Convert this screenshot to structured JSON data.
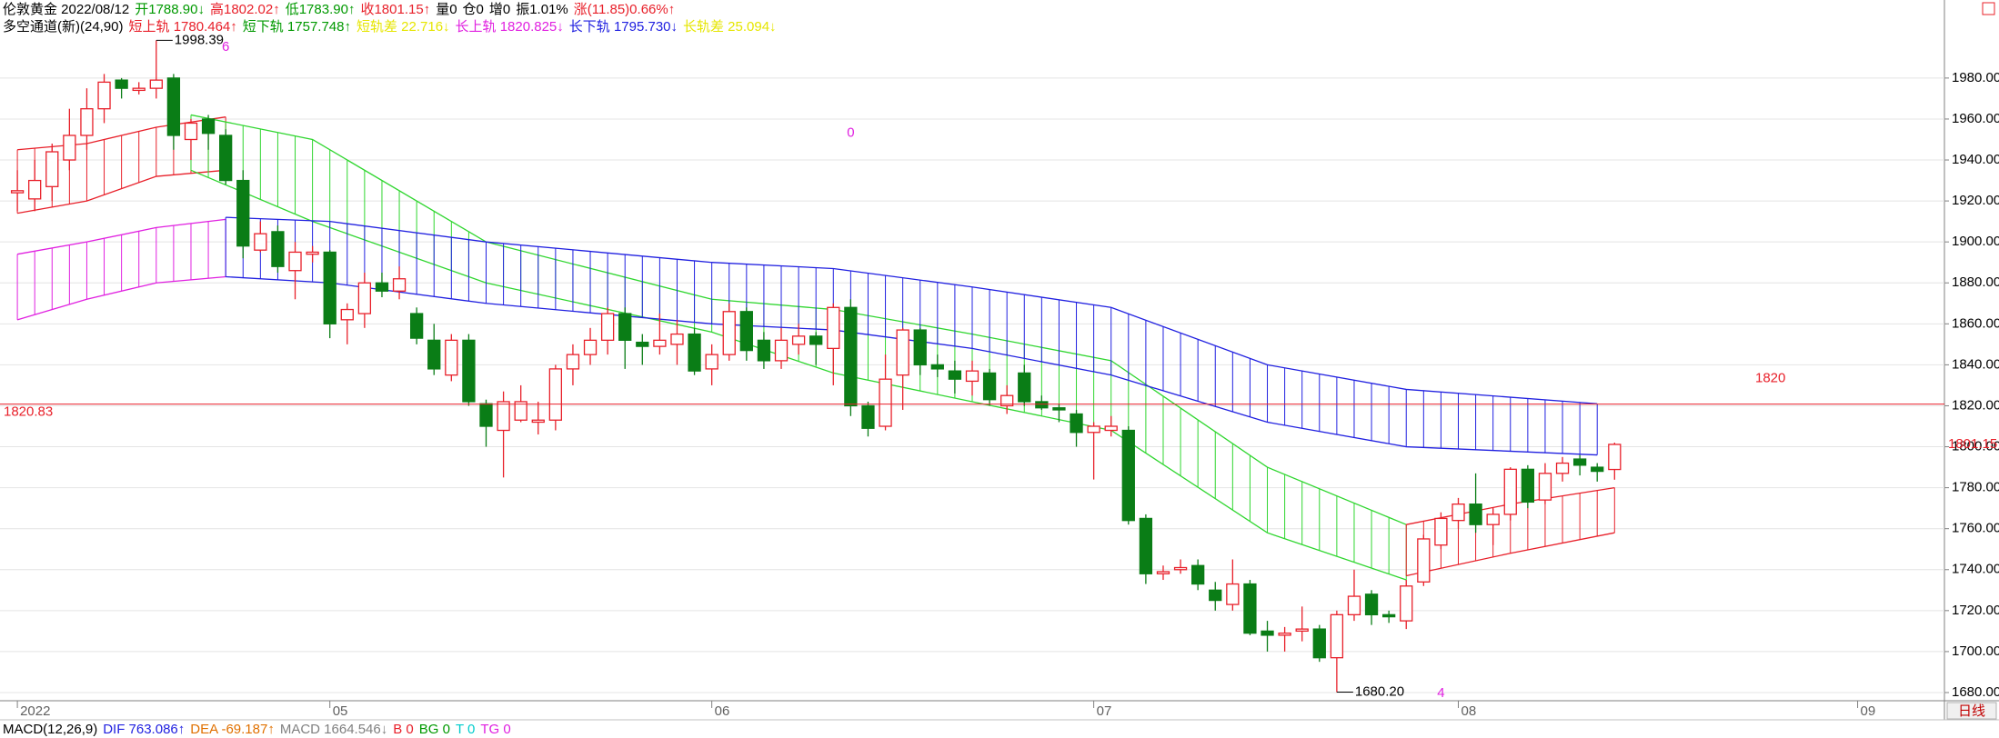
{
  "header_lines": [
    [
      {
        "text": "伦敦黄金 2022/08/12",
        "color": "#000000"
      },
      {
        "text": "开1788.90↓",
        "color": "#009900"
      },
      {
        "text": "高1802.02↑",
        "color": "#e8202a"
      },
      {
        "text": "低1783.90↑",
        "color": "#009900"
      },
      {
        "text": "收1801.15↑",
        "color": "#e8202a"
      },
      {
        "text": "量0",
        "color": "#000000"
      },
      {
        "text": "仓0",
        "color": "#000000"
      },
      {
        "text": "增0",
        "color": "#000000"
      },
      {
        "text": "振1.01%",
        "color": "#000000"
      },
      {
        "text": "涨(11.85)0.66%↑",
        "color": "#e8202a"
      }
    ],
    [
      {
        "text": "多空通道(新)(24,90)",
        "color": "#000000"
      },
      {
        "text": "短上轨 1780.464↑",
        "color": "#e8202a"
      },
      {
        "text": "短下轨 1757.748↑",
        "color": "#009900"
      },
      {
        "text": "短轨差 22.716↓",
        "color": "#e6e600"
      },
      {
        "text": "长上轨 1820.825↓",
        "color": "#e020e0"
      },
      {
        "text": "长下轨 1795.730↓",
        "color": "#2020e0"
      },
      {
        "text": "长轨差 25.094↓",
        "color": "#e6e600"
      }
    ]
  ],
  "footer_line": [
    {
      "text": "MACD(12,26,9)",
      "color": "#000000"
    },
    {
      "text": "DIF 763.086↑",
      "color": "#2020e0"
    },
    {
      "text": "DEA -69.187↑",
      "color": "#e07000"
    },
    {
      "text": "MACD 1664.546↓",
      "color": "#808080"
    },
    {
      "text": "B 0",
      "color": "#e8202a"
    },
    {
      "text": "BG 0",
      "color": "#009900"
    },
    {
      "text": "T 0",
      "color": "#00cccc"
    },
    {
      "text": "TG 0",
      "color": "#e020e0"
    }
  ],
  "period_button": "日线",
  "chart_data": {
    "type": "candlestick",
    "up_color": "#e8202a",
    "down_color": "#0a7d16",
    "open": [
      1924,
      1921,
      1927,
      1940,
      1952,
      1965,
      1979,
      1974,
      1975,
      1980,
      1950,
      1960,
      1952,
      1930,
      1896,
      1905,
      1886,
      1894,
      1895,
      1862,
      1865,
      1880,
      1876,
      1865,
      1852,
      1835,
      1852,
      1821,
      1808,
      1813,
      1812,
      1813,
      1838,
      1845,
      1852,
      1865,
      1851,
      1849,
      1850,
      1855,
      1838,
      1845,
      1866,
      1852,
      1842,
      1850,
      1854,
      1848,
      1868,
      1820,
      1810,
      1835,
      1857,
      1840,
      1837,
      1832,
      1836,
      1820,
      1836,
      1822,
      1819,
      1816,
      1807,
      1808,
      1808,
      1765,
      1738,
      1740,
      1742,
      1730,
      1723,
      1733,
      1710,
      1708,
      1710,
      1711,
      1697,
      1718,
      1728,
      1718,
      1715,
      1734,
      1752,
      1764,
      1772,
      1762,
      1767,
      1789,
      1774,
      1787,
      1794,
      1790,
      1788.9
    ],
    "high": [
      1935,
      1940,
      1948,
      1965,
      1975,
      1982,
      1980,
      1978,
      1998.39,
      1982,
      1960,
      1962,
      1955,
      1935,
      1910,
      1908,
      1900,
      1898,
      1896,
      1870,
      1885,
      1885,
      1888,
      1868,
      1860,
      1855,
      1855,
      1823,
      1827,
      1830,
      1822,
      1840,
      1850,
      1858,
      1868,
      1868,
      1855,
      1865,
      1862,
      1858,
      1850,
      1870,
      1868,
      1856,
      1858,
      1860,
      1856,
      1870,
      1872,
      1822,
      1845,
      1858,
      1858,
      1845,
      1842,
      1842,
      1838,
      1830,
      1840,
      1825,
      1821,
      1818,
      1812,
      1815,
      1810,
      1767,
      1742,
      1745,
      1745,
      1734,
      1745,
      1735,
      1715,
      1712,
      1722,
      1713,
      1720,
      1740,
      1730,
      1720,
      1735,
      1757,
      1768,
      1775,
      1787,
      1770,
      1790,
      1791,
      1792,
      1795,
      1796,
      1792,
      1802.02
    ],
    "low": [
      1915,
      1915,
      1920,
      1935,
      1945,
      1958,
      1970,
      1972,
      1970,
      1945,
      1940,
      1945,
      1928,
      1892,
      1895,
      1885,
      1872,
      1890,
      1853,
      1850,
      1858,
      1873,
      1872,
      1850,
      1835,
      1832,
      1820,
      1800,
      1785,
      1812,
      1806,
      1808,
      1830,
      1840,
      1845,
      1838,
      1840,
      1845,
      1840,
      1835,
      1830,
      1842,
      1842,
      1838,
      1838,
      1845,
      1840,
      1830,
      1815,
      1805,
      1808,
      1818,
      1835,
      1834,
      1826,
      1825,
      1820,
      1816,
      1820,
      1818,
      1812,
      1800,
      1784,
      1805,
      1762,
      1733,
      1735,
      1738,
      1730,
      1720,
      1720,
      1708,
      1700,
      1700,
      1705,
      1695,
      1680.2,
      1715,
      1713,
      1714,
      1711,
      1732,
      1750,
      1760,
      1758,
      1752,
      1764,
      1770,
      1772,
      1783,
      1786,
      1783,
      1783.9
    ],
    "close": [
      1925,
      1930,
      1944,
      1952,
      1965,
      1978,
      1975,
      1975,
      1979,
      1952,
      1958,
      1953,
      1930,
      1898,
      1904,
      1888,
      1895,
      1895,
      1860,
      1867,
      1880,
      1876,
      1882,
      1853,
      1838,
      1852,
      1822,
      1810,
      1822,
      1822,
      1813,
      1838,
      1845,
      1852,
      1865,
      1852,
      1849,
      1852,
      1855,
      1837,
      1845,
      1866,
      1847,
      1842,
      1852,
      1854,
      1850,
      1868,
      1820,
      1809,
      1833,
      1857,
      1840,
      1838,
      1833,
      1837,
      1823,
      1825,
      1822,
      1819,
      1818,
      1807,
      1810,
      1810,
      1764,
      1738,
      1739,
      1741,
      1733,
      1725,
      1733,
      1709,
      1708,
      1709,
      1711,
      1697,
      1718,
      1727,
      1718,
      1717,
      1732,
      1755,
      1765,
      1772,
      1762,
      1767,
      1789,
      1773,
      1787,
      1792,
      1791,
      1788,
      1801.15
    ],
    "bands": [
      {
        "color": "#e020e0",
        "x": [
          0,
          4,
          8,
          12
        ],
        "upper": [
          1894,
          1900,
          1907,
          1911
        ],
        "lower": [
          1862,
          1872,
          1880,
          1883
        ]
      },
      {
        "color": "#e8202a",
        "x": [
          0,
          4,
          8,
          12
        ],
        "upper": [
          1945,
          1948,
          1956,
          1961
        ],
        "lower": [
          1914,
          1920,
          1932,
          1935
        ]
      },
      {
        "color": "#2fd62f",
        "x": [
          10,
          17,
          27,
          40,
          47,
          55,
          63,
          72,
          80
        ],
        "upper": [
          1962,
          1950,
          1900,
          1872,
          1867,
          1855,
          1842,
          1790,
          1762
        ],
        "lower": [
          1935,
          1910,
          1880,
          1856,
          1836,
          1822,
          1808,
          1758,
          1735
        ]
      },
      {
        "color": "#2020e0",
        "x": [
          12,
          18,
          27,
          40,
          47,
          55,
          63,
          72,
          80,
          91
        ],
        "upper": [
          1912,
          1910,
          1900,
          1890,
          1887,
          1878,
          1868,
          1840,
          1828,
          1821
        ],
        "lower": [
          1883,
          1880,
          1870,
          1860,
          1857,
          1848,
          1835,
          1812,
          1800,
          1796
        ]
      },
      {
        "color": "#e8202a",
        "x": [
          80,
          86,
          92
        ],
        "upper": [
          1762,
          1772,
          1780
        ],
        "lower": [
          1737,
          1748,
          1758
        ]
      }
    ],
    "xlim": [
      -1,
      111
    ],
    "xticks": [
      {
        "value": 0,
        "label": "2022"
      },
      {
        "value": 18,
        "label": "05"
      },
      {
        "value": 40,
        "label": "06"
      },
      {
        "value": 62,
        "label": "07"
      },
      {
        "value": 83,
        "label": "08"
      },
      {
        "value": 106,
        "label": "09"
      }
    ],
    "ylim": [
      1676,
      2015
    ],
    "yticks": [
      {
        "value": 1680,
        "label": "1680.00"
      },
      {
        "value": 1700,
        "label": "1700.00"
      },
      {
        "value": 1720,
        "label": "1720.00"
      },
      {
        "value": 1740,
        "label": "1740.00"
      },
      {
        "value": 1760,
        "label": "1760.00"
      },
      {
        "value": 1780,
        "label": "1780.00"
      },
      {
        "value": 1800,
        "label": "1800.00"
      },
      {
        "value": 1820,
        "label": "1820.00"
      },
      {
        "value": 1840,
        "label": "1840.00"
      },
      {
        "value": 1860,
        "label": "1860.00"
      },
      {
        "value": 1880,
        "label": "1880.00"
      },
      {
        "value": 1900,
        "label": "1900.00"
      },
      {
        "value": 1920,
        "label": "1920.00"
      },
      {
        "value": 1940,
        "label": "1940.00"
      },
      {
        "value": 1960,
        "label": "1960.00"
      },
      {
        "value": 1980,
        "label": "1980.00"
      }
    ],
    "grid": true,
    "ref_line": {
      "value": 1820.83,
      "label": "1820.83",
      "note": "1820",
      "color": "#e8202a"
    },
    "last_price": {
      "value": 1801.15,
      "label": "1801.15"
    },
    "annotations": [
      {
        "index": 8,
        "value": 1998.39,
        "label": "1998.39"
      },
      {
        "index": 76,
        "value": 1680.2,
        "label": "1680.20"
      }
    ],
    "markers": [
      {
        "index": 12,
        "value": 1995,
        "label": "6"
      },
      {
        "index": 48,
        "value": 1953,
        "label": "0"
      },
      {
        "index": 82,
        "value": 1679.5,
        "label": "4"
      }
    ],
    "marker_color": "#e020e0"
  }
}
